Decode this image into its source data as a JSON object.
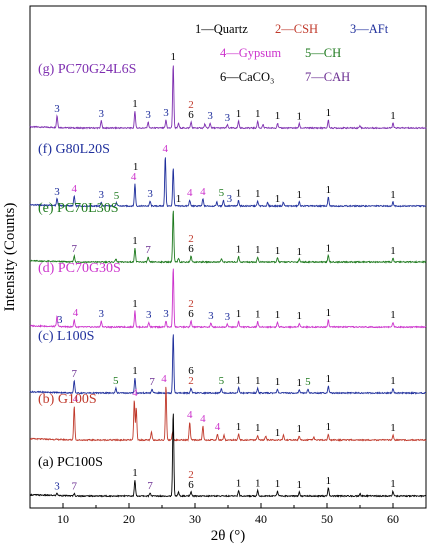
{
  "chart_data": {
    "type": "line",
    "title": "",
    "xlabel": "2θ (°)",
    "ylabel": "Intensity (Counts)",
    "xlim": [
      5,
      65
    ],
    "xticks": [
      "10",
      "20",
      "30",
      "40",
      "50",
      "60"
    ],
    "grid": false,
    "legend": {
      "placement": "top-right",
      "entries": [
        {
          "id": "1",
          "label": "1—Quartz",
          "color": "#000000"
        },
        {
          "id": "2",
          "label": "2—CSH",
          "color": "#c0392b"
        },
        {
          "id": "3",
          "label": "3—AFt",
          "color": "#1f2f9c"
        },
        {
          "id": "4",
          "label": "4—Gypsum",
          "color": "#cc33cc"
        },
        {
          "id": "5",
          "label": "5—CH",
          "color": "#1e7a1e"
        },
        {
          "id": "6",
          "label": "6—CaCO₃",
          "color": "#000000"
        },
        {
          "id": "7",
          "label": "7—CAH",
          "color": "#6a2c91"
        }
      ]
    },
    "series": [
      {
        "name": "(g) PC70G24L6S",
        "color": "#7e2fb0",
        "peaks": [
          [
            9.1,
            0.3
          ],
          [
            15.8,
            0.18
          ],
          [
            20.9,
            0.42
          ],
          [
            22.9,
            0.15
          ],
          [
            25.6,
            0.2
          ],
          [
            26.7,
            1.6
          ],
          [
            27.5,
            0.12
          ],
          [
            29.4,
            0.15
          ],
          [
            31.5,
            0.1
          ],
          [
            32.3,
            0.12
          ],
          [
            34.9,
            0.08
          ],
          [
            36.6,
            0.18
          ],
          [
            39.5,
            0.17
          ],
          [
            40.3,
            0.08
          ],
          [
            42.5,
            0.12
          ],
          [
            45.8,
            0.11
          ],
          [
            50.2,
            0.2
          ],
          [
            55.0,
            0.06
          ],
          [
            60.0,
            0.12
          ]
        ],
        "labels": [
          {
            "text": "3",
            "x": 9.1,
            "color": "#1f2f9c"
          },
          {
            "text": "3",
            "x": 15.8,
            "color": "#1f2f9c"
          },
          {
            "text": "1",
            "x": 20.9,
            "color": "#000000"
          },
          {
            "text": "3",
            "x": 22.9,
            "color": "#1f2f9c"
          },
          {
            "text": "3",
            "x": 25.6,
            "color": "#1f2f9c"
          },
          {
            "text": "1",
            "x": 26.7,
            "color": "#000000"
          },
          {
            "text": "6",
            "x": 29.4,
            "color": "#000000"
          },
          {
            "text": "2",
            "x": 29.4,
            "color": "#c0392b",
            "dy": 1
          },
          {
            "text": "3",
            "x": 32.3,
            "color": "#1f2f9c"
          },
          {
            "text": "3",
            "x": 34.9,
            "color": "#1f2f9c"
          },
          {
            "text": "1",
            "x": 36.6,
            "color": "#000000"
          },
          {
            "text": "1",
            "x": 39.5,
            "color": "#000000"
          },
          {
            "text": "1",
            "x": 42.5,
            "color": "#000000"
          },
          {
            "text": "1",
            "x": 45.8,
            "color": "#000000"
          },
          {
            "text": "1",
            "x": 50.2,
            "color": "#000000"
          },
          {
            "text": "1",
            "x": 60.0,
            "color": "#000000"
          }
        ]
      },
      {
        "name": "(f) G80L20S",
        "color": "#1f2f9c",
        "peaks": [
          [
            9.1,
            0.18
          ],
          [
            11.7,
            0.25
          ],
          [
            15.8,
            0.1
          ],
          [
            18.1,
            0.08
          ],
          [
            20.9,
            0.55
          ],
          [
            23.2,
            0.12
          ],
          [
            25.5,
            1.25
          ],
          [
            26.7,
            0.95
          ],
          [
            29.2,
            0.15
          ],
          [
            31.2,
            0.18
          ],
          [
            33.3,
            0.1
          ],
          [
            34.3,
            0.15
          ],
          [
            36.6,
            0.14
          ],
          [
            39.5,
            0.12
          ],
          [
            41.0,
            0.08
          ],
          [
            43.4,
            0.1
          ],
          [
            45.8,
            0.1
          ],
          [
            50.2,
            0.22
          ],
          [
            60.0,
            0.1
          ]
        ],
        "labels": [
          {
            "text": "3",
            "x": 9.1,
            "color": "#1f2f9c"
          },
          {
            "text": "4",
            "x": 11.7,
            "color": "#cc33cc"
          },
          {
            "text": "3",
            "x": 15.8,
            "color": "#1f2f9c"
          },
          {
            "text": "5",
            "x": 18.1,
            "color": "#1e7a1e"
          },
          {
            "text": "4",
            "x": 20.7,
            "color": "#cc33cc"
          },
          {
            "text": "1",
            "x": 21.0,
            "color": "#000000",
            "dy": 1
          },
          {
            "text": "3",
            "x": 23.2,
            "color": "#1f2f9c"
          },
          {
            "text": "4",
            "x": 25.5,
            "color": "#cc33cc"
          },
          {
            "text": "1",
            "x": 27.5,
            "color": "#000000"
          },
          {
            "text": "4",
            "x": 29.2,
            "color": "#cc33cc"
          },
          {
            "text": "4",
            "x": 31.2,
            "color": "#cc33cc"
          },
          {
            "text": "5",
            "x": 34.0,
            "color": "#1e7a1e"
          },
          {
            "text": "3",
            "x": 35.2,
            "color": "#1f2f9c"
          },
          {
            "text": "1",
            "x": 36.6,
            "color": "#000000"
          },
          {
            "text": "1",
            "x": 39.5,
            "color": "#000000"
          },
          {
            "text": "1",
            "x": 42.5,
            "color": "#000000"
          },
          {
            "text": "1",
            "x": 45.8,
            "color": "#000000"
          },
          {
            "text": "1",
            "x": 50.2,
            "color": "#000000"
          },
          {
            "text": "1",
            "x": 60.0,
            "color": "#000000"
          }
        ]
      },
      {
        "name": "(e) PC70L30S",
        "color": "#1e7a1e",
        "peaks": [
          [
            11.7,
            0.15
          ],
          [
            18.0,
            0.08
          ],
          [
            20.9,
            0.35
          ],
          [
            22.9,
            0.12
          ],
          [
            26.7,
            1.3
          ],
          [
            27.5,
            0.1
          ],
          [
            29.4,
            0.15
          ],
          [
            34.0,
            0.08
          ],
          [
            36.6,
            0.14
          ],
          [
            39.5,
            0.12
          ],
          [
            42.5,
            0.1
          ],
          [
            45.8,
            0.08
          ],
          [
            50.2,
            0.16
          ],
          [
            60.0,
            0.1
          ]
        ],
        "labels": [
          {
            "text": "7",
            "x": 11.7,
            "color": "#6a2c91"
          },
          {
            "text": "1",
            "x": 20.9,
            "color": "#000000"
          },
          {
            "text": "7",
            "x": 22.9,
            "color": "#6a2c91"
          },
          {
            "text": "6",
            "x": 29.4,
            "color": "#000000"
          },
          {
            "text": "2",
            "x": 29.4,
            "color": "#c0392b",
            "dy": 1
          },
          {
            "text": "1",
            "x": 36.6,
            "color": "#000000"
          },
          {
            "text": "1",
            "x": 39.5,
            "color": "#000000"
          },
          {
            "text": "1",
            "x": 42.5,
            "color": "#000000"
          },
          {
            "text": "1",
            "x": 45.8,
            "color": "#000000"
          },
          {
            "text": "1",
            "x": 50.2,
            "color": "#000000"
          },
          {
            "text": "1",
            "x": 60.0,
            "color": "#000000"
          }
        ]
      },
      {
        "name": "(d) PC70G30S",
        "color": "#cc33cc",
        "peaks": [
          [
            9.1,
            0.25
          ],
          [
            11.7,
            0.18
          ],
          [
            15.8,
            0.15
          ],
          [
            20.9,
            0.4
          ],
          [
            23.0,
            0.12
          ],
          [
            25.6,
            0.15
          ],
          [
            26.7,
            1.5
          ],
          [
            29.4,
            0.15
          ],
          [
            32.4,
            0.1
          ],
          [
            34.9,
            0.08
          ],
          [
            36.6,
            0.15
          ],
          [
            39.5,
            0.14
          ],
          [
            42.5,
            0.12
          ],
          [
            45.8,
            0.1
          ],
          [
            50.2,
            0.18
          ],
          [
            60.0,
            0.12
          ]
        ],
        "labels": [
          {
            "text": "3",
            "x": 9.5,
            "color": "#1f2f9c"
          },
          {
            "text": "4",
            "x": 11.9,
            "color": "#cc33cc"
          },
          {
            "text": "3",
            "x": 15.8,
            "color": "#1f2f9c"
          },
          {
            "text": "1",
            "x": 20.9,
            "color": "#000000"
          },
          {
            "text": "3",
            "x": 23.0,
            "color": "#1f2f9c"
          },
          {
            "text": "3",
            "x": 25.6,
            "color": "#1f2f9c"
          },
          {
            "text": "6",
            "x": 29.4,
            "color": "#000000"
          },
          {
            "text": "2",
            "x": 29.4,
            "color": "#c0392b",
            "dy": 1
          },
          {
            "text": "3",
            "x": 32.4,
            "color": "#1f2f9c"
          },
          {
            "text": "3",
            "x": 34.9,
            "color": "#1f2f9c"
          },
          {
            "text": "1",
            "x": 36.6,
            "color": "#000000"
          },
          {
            "text": "1",
            "x": 39.5,
            "color": "#000000"
          },
          {
            "text": "1",
            "x": 42.5,
            "color": "#000000"
          },
          {
            "text": "1",
            "x": 45.8,
            "color": "#000000"
          },
          {
            "text": "1",
            "x": 50.2,
            "color": "#000000"
          },
          {
            "text": "1",
            "x": 60.0,
            "color": "#000000"
          }
        ]
      },
      {
        "name": "(c) L100S",
        "color": "#1f2f9c",
        "peaks": [
          [
            11.7,
            0.3
          ],
          [
            18.0,
            0.12
          ],
          [
            20.9,
            0.38
          ],
          [
            23.5,
            0.1
          ],
          [
            26.7,
            1.5
          ],
          [
            29.4,
            0.12
          ],
          [
            34.0,
            0.12
          ],
          [
            36.6,
            0.14
          ],
          [
            39.5,
            0.12
          ],
          [
            42.5,
            0.1
          ],
          [
            45.8,
            0.08
          ],
          [
            47.1,
            0.1
          ],
          [
            50.2,
            0.18
          ],
          [
            60.0,
            0.12
          ]
        ],
        "labels": [
          {
            "text": "7",
            "x": 11.7,
            "color": "#6a2c91"
          },
          {
            "text": "5",
            "x": 18.0,
            "color": "#1e7a1e"
          },
          {
            "text": "1",
            "x": 20.9,
            "color": "#000000"
          },
          {
            "text": "7",
            "x": 23.5,
            "color": "#6a2c91"
          },
          {
            "text": "2",
            "x": 29.4,
            "color": "#c0392b"
          },
          {
            "text": "6",
            "x": 29.4,
            "color": "#000000",
            "dy": 1
          },
          {
            "text": "5",
            "x": 34.0,
            "color": "#1e7a1e"
          },
          {
            "text": "1",
            "x": 36.6,
            "color": "#000000"
          },
          {
            "text": "1",
            "x": 39.5,
            "color": "#000000"
          },
          {
            "text": "1",
            "x": 42.5,
            "color": "#000000"
          },
          {
            "text": "1",
            "x": 45.8,
            "color": "#000000"
          },
          {
            "text": "5",
            "x": 47.1,
            "color": "#1e7a1e"
          },
          {
            "text": "1",
            "x": 50.2,
            "color": "#000000"
          },
          {
            "text": "1",
            "x": 60.0,
            "color": "#000000"
          }
        ]
      },
      {
        "name": "(b) G100S",
        "color": "#c0392b",
        "peaks": [
          [
            11.7,
            0.85
          ],
          [
            20.8,
            1.0
          ],
          [
            21.1,
            0.8
          ],
          [
            23.4,
            0.2
          ],
          [
            25.6,
            1.35
          ],
          [
            26.6,
            0.2
          ],
          [
            29.2,
            0.45
          ],
          [
            31.2,
            0.35
          ],
          [
            33.4,
            0.15
          ],
          [
            34.4,
            0.12
          ],
          [
            36.6,
            0.15
          ],
          [
            39.5,
            0.12
          ],
          [
            40.7,
            0.1
          ],
          [
            43.4,
            0.12
          ],
          [
            45.8,
            0.1
          ],
          [
            48.0,
            0.08
          ],
          [
            50.2,
            0.15
          ],
          [
            60.0,
            0.12
          ]
        ],
        "labels": [
          {
            "text": "4",
            "x": 11.9,
            "color": "#cc33cc"
          },
          {
            "text": "4",
            "x": 20.9,
            "color": "#cc33cc"
          },
          {
            "text": "4",
            "x": 25.3,
            "color": "#cc33cc"
          },
          {
            "text": "4",
            "x": 29.2,
            "color": "#cc33cc"
          },
          {
            "text": "4",
            "x": 31.2,
            "color": "#cc33cc"
          },
          {
            "text": "4",
            "x": 33.4,
            "color": "#cc33cc"
          },
          {
            "text": "1",
            "x": 36.6,
            "color": "#000000"
          },
          {
            "text": "1",
            "x": 39.5,
            "color": "#000000"
          },
          {
            "text": "1",
            "x": 42.5,
            "color": "#000000"
          },
          {
            "text": "1",
            "x": 45.8,
            "color": "#000000"
          },
          {
            "text": "1",
            "x": 50.2,
            "color": "#000000"
          },
          {
            "text": "1",
            "x": 60.0,
            "color": "#000000"
          }
        ]
      },
      {
        "name": "(a) PC100S",
        "color": "#000000",
        "peaks": [
          [
            9.1,
            0.06
          ],
          [
            11.7,
            0.06
          ],
          [
            20.9,
            0.4
          ],
          [
            23.2,
            0.08
          ],
          [
            26.7,
            2.1
          ],
          [
            27.5,
            0.1
          ],
          [
            29.4,
            0.1
          ],
          [
            36.6,
            0.14
          ],
          [
            39.5,
            0.14
          ],
          [
            42.5,
            0.12
          ],
          [
            45.8,
            0.1
          ],
          [
            50.2,
            0.2
          ],
          [
            55.0,
            0.06
          ],
          [
            60.0,
            0.12
          ]
        ],
        "labels": [
          {
            "text": "3",
            "x": 9.1,
            "color": "#1f2f9c"
          },
          {
            "text": "7",
            "x": 11.7,
            "color": "#6a2c91"
          },
          {
            "text": "1",
            "x": 20.9,
            "color": "#000000"
          },
          {
            "text": "7",
            "x": 23.2,
            "color": "#6a2c91"
          },
          {
            "text": "6",
            "x": 29.4,
            "color": "#000000"
          },
          {
            "text": "2",
            "x": 29.4,
            "color": "#c0392b",
            "dy": 1
          },
          {
            "text": "1",
            "x": 36.6,
            "color": "#000000"
          },
          {
            "text": "1",
            "x": 39.5,
            "color": "#000000"
          },
          {
            "text": "1",
            "x": 42.5,
            "color": "#000000"
          },
          {
            "text": "1",
            "x": 45.8,
            "color": "#000000"
          },
          {
            "text": "1",
            "x": 50.2,
            "color": "#000000"
          },
          {
            "text": "1",
            "x": 60.0,
            "color": "#000000"
          }
        ]
      }
    ]
  }
}
